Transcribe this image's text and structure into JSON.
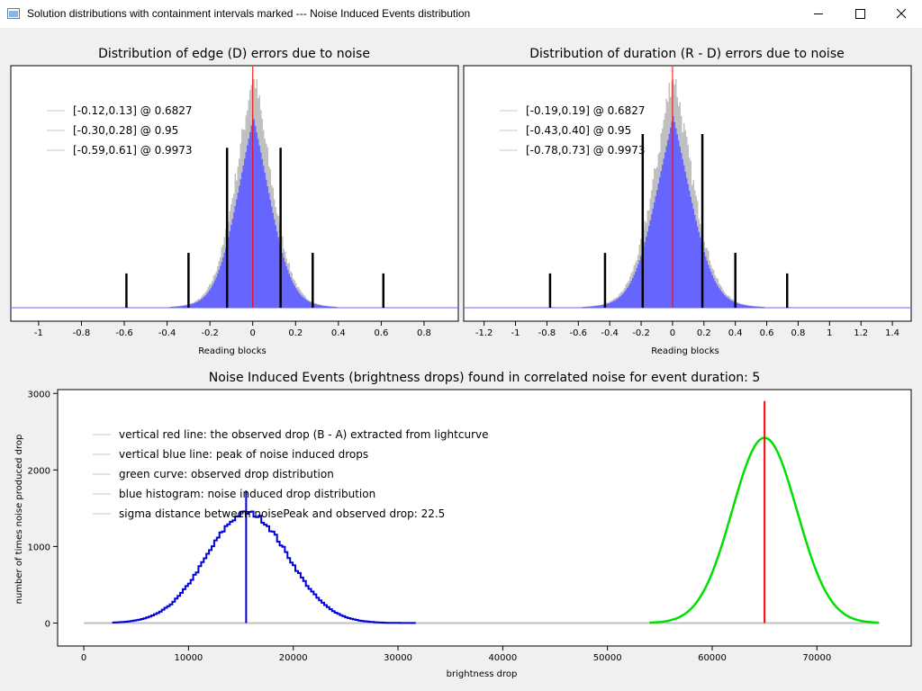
{
  "window": {
    "title": "Solution distributions with containment intervals marked --- Noise Induced Events distribution",
    "minimize_icon": "minimize-icon",
    "maximize_icon": "maximize-icon",
    "close_icon": "close-icon"
  },
  "colors": {
    "hist_blue": "#6666ff",
    "noise_gray": "#c0c0c0",
    "red": "#ff0000",
    "blue": "#0000dd",
    "green": "#00e000",
    "baseline": "#c0c0c0"
  },
  "chart_data": [
    {
      "type": "bar",
      "title": "Distribution of edge (D) errors due to noise",
      "xlabel": "Reading blocks",
      "ylabel": "",
      "xlim": [
        -1.13,
        0.96
      ],
      "xticks": [
        "-1",
        "-0.8",
        "-0.6",
        "-0.4",
        "-0.2",
        "0",
        "0.2",
        "0.4",
        "0.6",
        "0.8"
      ],
      "xtick_values": [
        -1,
        -0.8,
        -0.6,
        -0.4,
        -0.2,
        0,
        0.2,
        0.4,
        0.6,
        0.8
      ],
      "distribution": {
        "center": 0.0,
        "sigma": 0.095,
        "relative_peak_height": 1.0
      },
      "observed_marker": 0.0,
      "legend": [
        "[-0.12,0.13] @ 0.6827",
        "[-0.30,0.28] @ 0.95",
        "[-0.59,0.61] @ 0.9973"
      ],
      "intervals": [
        {
          "low": -0.12,
          "high": 0.13,
          "level": 0.6827,
          "relative_height": 0.7
        },
        {
          "low": -0.3,
          "high": 0.28,
          "level": 0.95,
          "relative_height": 0.24
        },
        {
          "low": -0.59,
          "high": 0.61,
          "level": 0.9973,
          "relative_height": 0.15
        }
      ]
    },
    {
      "type": "bar",
      "title": "Distribution of duration (R - D) errors due to noise",
      "xlabel": "Reading blocks",
      "ylabel": "",
      "xlim": [
        -1.33,
        1.52
      ],
      "xticks": [
        "-1.2",
        "-1",
        "-0.8",
        "-0.6",
        "-0.4",
        "-0.2",
        "0",
        "0.2",
        "0.4",
        "0.6",
        "0.8",
        "1",
        "1.2",
        "1.4"
      ],
      "xtick_values": [
        -1.2,
        -1,
        -0.8,
        -0.6,
        -0.4,
        -0.2,
        0,
        0.2,
        0.4,
        0.6,
        0.8,
        1,
        1.2,
        1.4
      ],
      "distribution": {
        "center": 0.0,
        "sigma": 0.14,
        "relative_peak_height": 1.0
      },
      "observed_marker": 0.0,
      "legend": [
        "[-0.19,0.19] @ 0.6827",
        "[-0.43,0.40] @ 0.95",
        "[-0.78,0.73] @ 0.9973"
      ],
      "intervals": [
        {
          "low": -0.19,
          "high": 0.19,
          "level": 0.6827,
          "relative_height": 0.76
        },
        {
          "low": -0.43,
          "high": 0.4,
          "level": 0.95,
          "relative_height": 0.24
        },
        {
          "low": -0.78,
          "high": 0.73,
          "level": 0.9973,
          "relative_height": 0.15
        }
      ]
    },
    {
      "type": "line",
      "title": "Noise Induced Events (brightness drops) found in correlated noise for event duration: 5",
      "xlabel": "brightness drop",
      "ylabel": "number of times noise produced drop",
      "xlim": [
        -2500,
        79000
      ],
      "ylim": [
        -300,
        3050
      ],
      "xticks": [
        "0",
        "10000",
        "20000",
        "30000",
        "40000",
        "50000",
        "60000",
        "70000"
      ],
      "xtick_values": [
        0,
        10000,
        20000,
        30000,
        40000,
        50000,
        60000,
        70000
      ],
      "yticks": [
        "0",
        "1000",
        "2000",
        "3000"
      ],
      "ytick_values": [
        0,
        1000,
        2000,
        3000
      ],
      "legend": [
        "vertical red line: the observed drop (B - A) extracted from lightcurve",
        "vertical blue line: peak of noise induced drops",
        "green curve: observed drop distribution",
        "blue histogram: noise induced drop distribution",
        "sigma distance between noisePeak and observed drop: 22.5"
      ],
      "baseline_range": [
        0,
        76000
      ],
      "noise_histogram": {
        "center": 15500,
        "sigma": 3900,
        "peak": 1440,
        "range": [
          2700,
          31500
        ]
      },
      "noise_peak_line": {
        "x": 15500,
        "height": 1730
      },
      "observed_distribution": {
        "center": 65000,
        "sigma": 3100,
        "peak": 2420,
        "range": [
          54000,
          76000
        ]
      },
      "observed_drop_line": {
        "x": 65000,
        "height": 2900
      }
    }
  ]
}
